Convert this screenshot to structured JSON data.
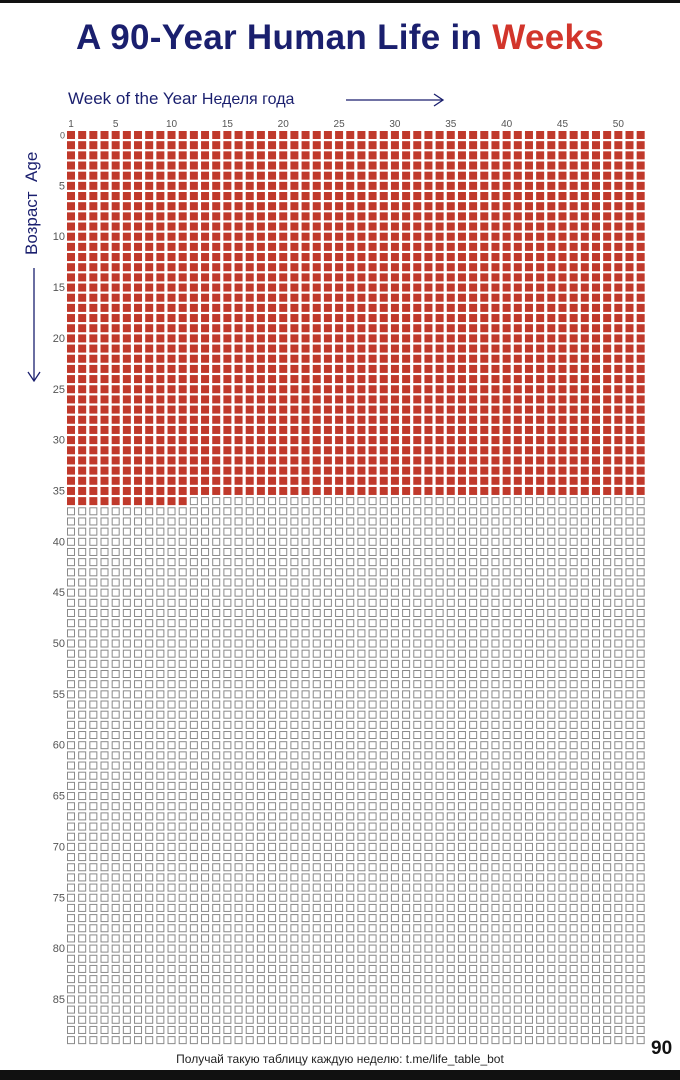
{
  "chart_data": {
    "type": "heatmap",
    "title": "A 90-Year Human Life in",
    "title_accent": "Weeks",
    "xlabel": "Week of the Year",
    "xlabel_ru": "Неделя года",
    "ylabel": "Age",
    "ylabel_ru": "Возраст",
    "columns": 52,
    "rows": 90,
    "x_ticks": [
      1,
      5,
      10,
      15,
      20,
      25,
      30,
      35,
      40,
      45,
      50
    ],
    "y_ticks": [
      0,
      5,
      10,
      15,
      20,
      25,
      30,
      35,
      40,
      45,
      50,
      55,
      60,
      65,
      70,
      75,
      80,
      85
    ],
    "filled_full_years": 36,
    "filled_weeks_in_current_year": 11,
    "filled_total_weeks": 1883,
    "end_label": "90",
    "colors": {
      "filled": "#c0392b",
      "empty_stroke": "#8a8a8a",
      "title": "#1a1f6e",
      "accent": "#d2352b"
    }
  },
  "footer": "Получай такую таблицу каждую неделю: t.me/life_table_bot"
}
